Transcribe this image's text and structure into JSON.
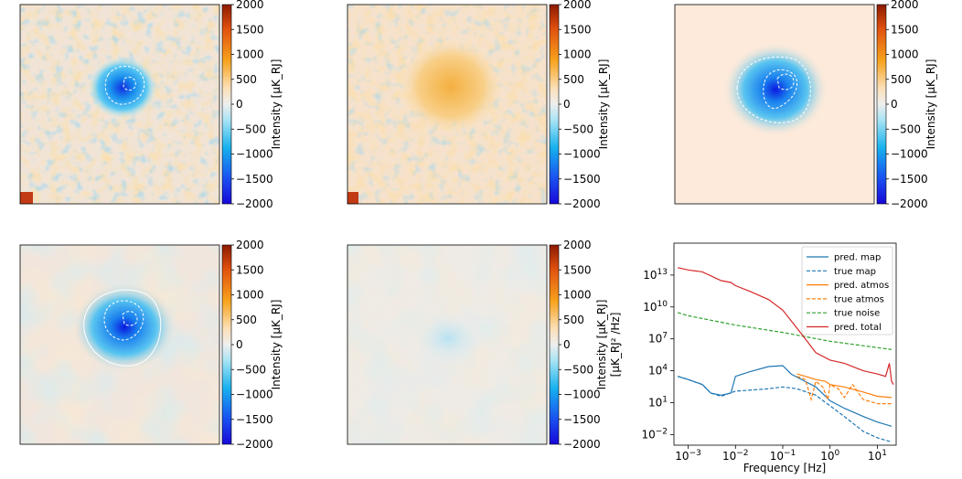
{
  "colorbar": {
    "label": "Intensity [μK_RJ]",
    "ticks": [
      "2000",
      "1500",
      "1000",
      "500",
      "0",
      "−500",
      "−1000",
      "−1500",
      "−2000"
    ],
    "range": [
      -2000,
      2000
    ]
  },
  "panels": [
    {
      "id": "top-left",
      "content": "map with source and contours"
    },
    {
      "id": "top-middle",
      "content": "atmosphere map"
    },
    {
      "id": "top-right",
      "content": "smooth source model"
    },
    {
      "id": "bottom-left",
      "content": "smoothed map with source"
    },
    {
      "id": "bottom-middle",
      "content": "smoothed residual"
    }
  ],
  "chart_data": {
    "type": "line",
    "xlabel": "Frequency [Hz]",
    "ylabel_line1": "Intensity [μK_RJ]",
    "ylabel_line2": "[μK_RJ² /Hz]",
    "xscale": "log",
    "yscale": "log",
    "xlim": [
      0.0005,
      25
    ],
    "ylim": [
      0.001,
      10000000000000000
    ],
    "xticks": [
      {
        "v": 0.001,
        "base": "10",
        "exp": "−3"
      },
      {
        "v": 0.01,
        "base": "10",
        "exp": "−2"
      },
      {
        "v": 0.1,
        "base": "10",
        "exp": "−1"
      },
      {
        "v": 1,
        "base": "10",
        "exp": "0"
      },
      {
        "v": 10,
        "base": "10",
        "exp": "1"
      }
    ],
    "yticks": [
      {
        "v": 0.01,
        "base": "10",
        "exp": "−2"
      },
      {
        "v": 10,
        "base": "10",
        "exp": "1"
      },
      {
        "v": 10000,
        "base": "10",
        "exp": "4"
      },
      {
        "v": 10000000,
        "base": "10",
        "exp": "7"
      },
      {
        "v": 10000000000,
        "base": "10",
        "exp": "10"
      },
      {
        "v": 10000000000000,
        "base": "10",
        "exp": "13"
      }
    ],
    "legend_position": "top-right",
    "series": [
      {
        "name": "pred. map",
        "color": "#1f77b4",
        "dash": "solid",
        "points": [
          [
            0.0006,
            3000
          ],
          [
            0.001,
            1500
          ],
          [
            0.002,
            500
          ],
          [
            0.003,
            80
          ],
          [
            0.005,
            50
          ],
          [
            0.008,
            80
          ],
          [
            0.01,
            3000
          ],
          [
            0.02,
            8000
          ],
          [
            0.05,
            25000
          ],
          [
            0.1,
            30000
          ],
          [
            0.15,
            5000
          ],
          [
            0.2,
            2500
          ],
          [
            0.5,
            300
          ],
          [
            1,
            15
          ],
          [
            2,
            3
          ],
          [
            5,
            0.5
          ],
          [
            10,
            0.15
          ],
          [
            20,
            0.06
          ]
        ]
      },
      {
        "name": "true map",
        "color": "#1f77b4",
        "dash": "dashed",
        "points": [
          [
            0.0006,
            3000
          ],
          [
            0.001,
            1500
          ],
          [
            0.002,
            500
          ],
          [
            0.003,
            80
          ],
          [
            0.005,
            40
          ],
          [
            0.01,
            120
          ],
          [
            0.05,
            200
          ],
          [
            0.1,
            300
          ],
          [
            0.2,
            200
          ],
          [
            0.5,
            50
          ],
          [
            1,
            5
          ],
          [
            2,
            0.5
          ],
          [
            5,
            0.02
          ],
          [
            10,
            0.005
          ],
          [
            20,
            0.002
          ]
        ]
      },
      {
        "name": "pred. atmos",
        "color": "#ff7f0e",
        "dash": "solid",
        "points": [
          [
            0.2,
            5000
          ],
          [
            0.3,
            3000
          ],
          [
            0.5,
            1500
          ],
          [
            0.8,
            1000
          ],
          [
            1,
            500
          ],
          [
            2,
            300
          ],
          [
            5,
            100
          ],
          [
            10,
            40
          ],
          [
            20,
            30
          ]
        ]
      },
      {
        "name": "true atmos",
        "color": "#ff7f0e",
        "dash": "dashed",
        "points": [
          [
            0.2,
            3000
          ],
          [
            0.3,
            1500
          ],
          [
            0.4,
            20
          ],
          [
            0.5,
            1000
          ],
          [
            0.7,
            300
          ],
          [
            0.9,
            20
          ],
          [
            1,
            500
          ],
          [
            1.5,
            200
          ],
          [
            2,
            30
          ],
          [
            3,
            500
          ],
          [
            5,
            20
          ],
          [
            10,
            8
          ],
          [
            20,
            8
          ]
        ]
      },
      {
        "name": "true noise",
        "color": "#2ca02c",
        "dash": "dashed",
        "points": [
          [
            0.0006,
            3000000000
          ],
          [
            0.001,
            1500000000
          ],
          [
            0.01,
            200000000
          ],
          [
            0.1,
            40000000
          ],
          [
            1,
            6000000
          ],
          [
            10,
            1500000
          ],
          [
            20,
            1000000
          ]
        ]
      },
      {
        "name": "pred. total",
        "color": "#d62728",
        "dash": "solid",
        "points": [
          [
            0.0006,
            50000000000000
          ],
          [
            0.001,
            30000000000000
          ],
          [
            0.002,
            20000000000000
          ],
          [
            0.005,
            3000000000000
          ],
          [
            0.008,
            2000000000000
          ],
          [
            0.01,
            1000000000000
          ],
          [
            0.02,
            300000000000
          ],
          [
            0.05,
            50000000000
          ],
          [
            0.1,
            5000000000
          ],
          [
            0.2,
            100000000
          ],
          [
            0.3,
            10000000
          ],
          [
            0.5,
            500000
          ],
          [
            1,
            100000
          ],
          [
            2,
            50000
          ],
          [
            5,
            10000
          ],
          [
            10,
            5000
          ],
          [
            15,
            3000
          ],
          [
            18,
            50000
          ],
          [
            20,
            1000
          ],
          [
            22,
            500
          ]
        ]
      }
    ]
  }
}
